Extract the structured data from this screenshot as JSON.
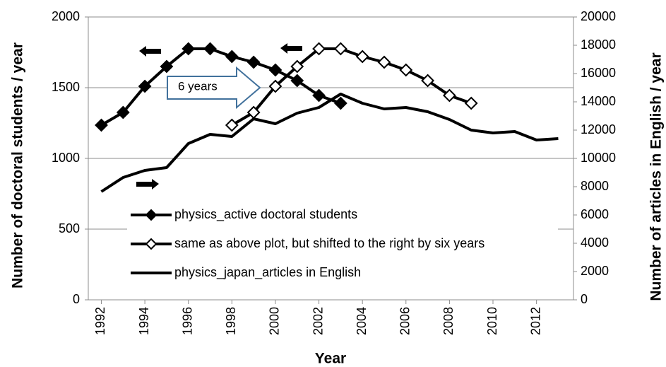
{
  "chart_data": {
    "type": "line",
    "xlabel": "Year",
    "ylabel": "Number of doctoral students / year",
    "y2label": "Number of articles in English / year",
    "annotations": [
      "6 years"
    ],
    "xlim": [
      1991.4,
      2013.7
    ],
    "xticks": [
      1992,
      1994,
      1996,
      1998,
      2000,
      2002,
      2004,
      2006,
      2008,
      2010,
      2012
    ],
    "ylim": [
      0,
      2000
    ],
    "yticks": [
      0,
      500,
      1000,
      1500,
      2000
    ],
    "y2lim": [
      0,
      20000
    ],
    "y2ticks": [
      0,
      2000,
      4000,
      6000,
      8000,
      10000,
      12000,
      14000,
      16000,
      18000,
      20000
    ],
    "grid": true,
    "legend": "lower left",
    "series": [
      {
        "name": "physics_active doctoral students",
        "color": "#000000",
        "marker": "filled-diamond",
        "x": [
          1992,
          1993,
          1994,
          1995,
          1996,
          1997,
          1998,
          1999,
          2000,
          2001,
          2002,
          2003
        ],
        "values": [
          1235,
          1325,
          1510,
          1650,
          1775,
          1775,
          1720,
          1680,
          1625,
          1550,
          1445,
          1390
        ]
      },
      {
        "name": "same as above plot, but shifted to the right by six years",
        "color": "#000000",
        "marker": "open-diamond",
        "x": [
          1998,
          1999,
          2000,
          2001,
          2002,
          2003,
          2004,
          2005,
          2006,
          2007,
          2008,
          2009
        ],
        "values": [
          1235,
          1325,
          1510,
          1650,
          1775,
          1775,
          1720,
          1680,
          1625,
          1550,
          1445,
          1390
        ]
      },
      {
        "name": "physics_japan_articles in English",
        "color": "#000000",
        "marker": "none",
        "axis": "y2",
        "x": [
          1992,
          1993,
          1994,
          1995,
          1996,
          1997,
          1998,
          1999,
          2000,
          2001,
          2002,
          2003,
          2004,
          2005,
          2006,
          2007,
          2008,
          2009,
          2010,
          2011,
          2012,
          2013
        ],
        "values": [
          7650,
          8650,
          9150,
          9350,
          11050,
          11700,
          11550,
          12800,
          12450,
          13200,
          13600,
          14550,
          13900,
          13500,
          13600,
          13300,
          12750,
          12000,
          11800,
          11900,
          11300,
          11400
        ]
      }
    ]
  }
}
